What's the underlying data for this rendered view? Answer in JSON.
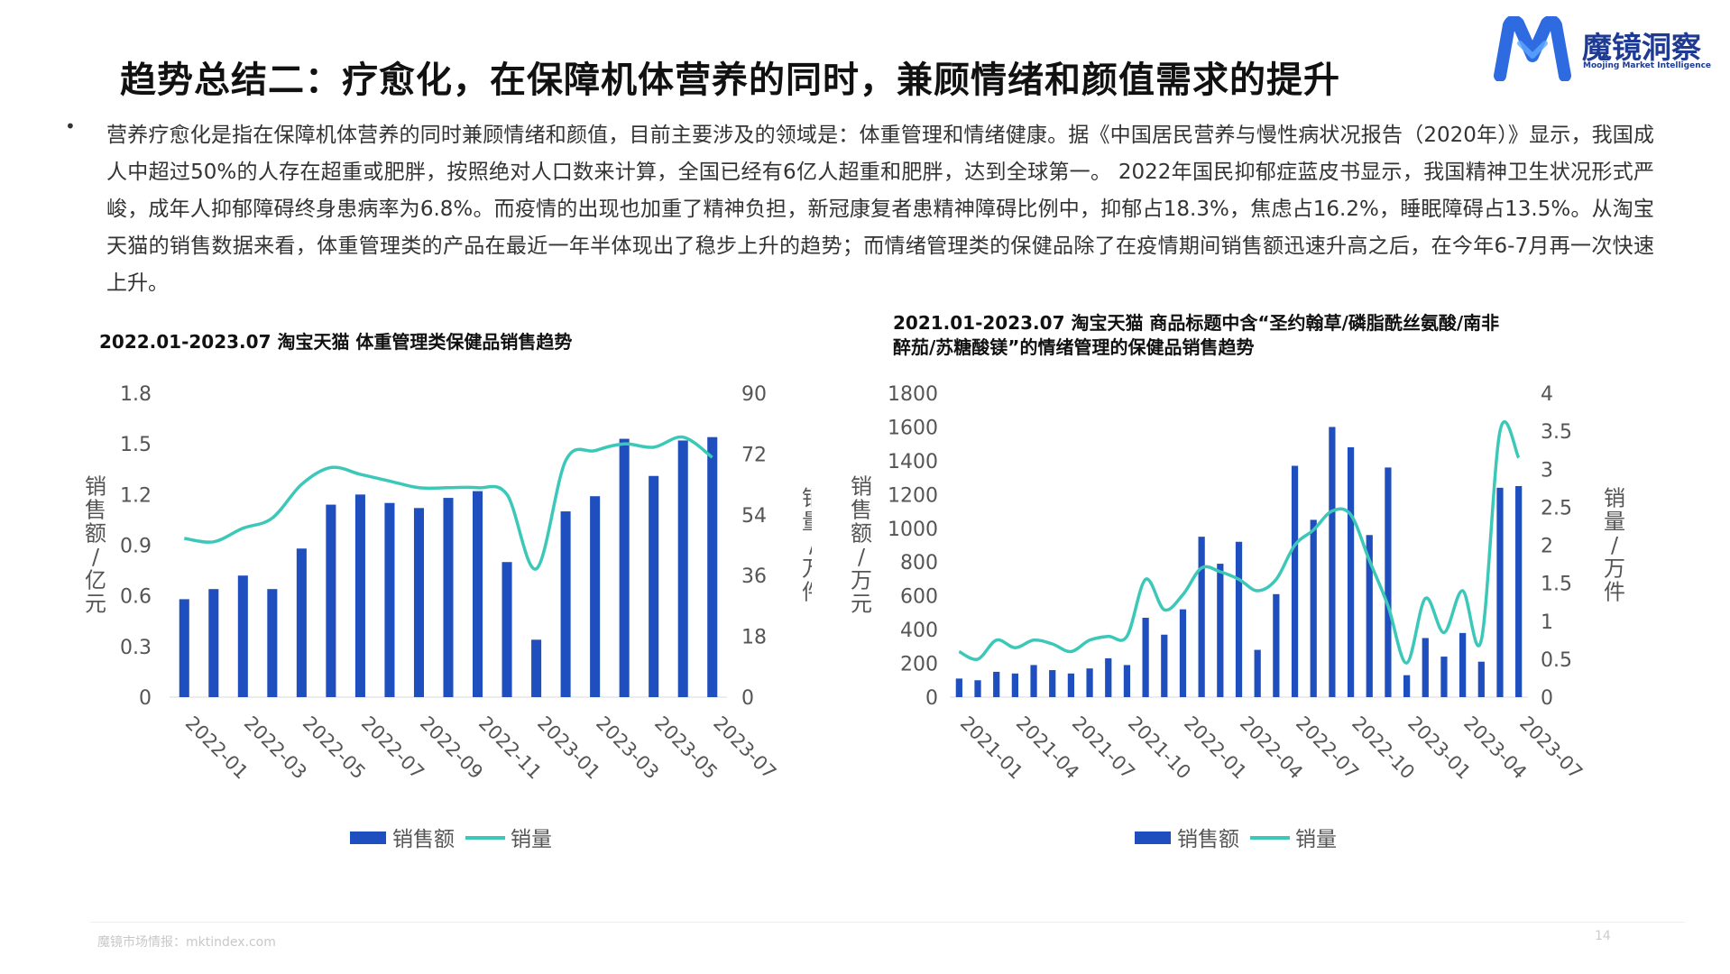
{
  "header": {
    "title": "趋势总结二：疗愈化，在保障机体营养的同时，兼顾情绪和颜值需求的提升",
    "logo_text": "魔镜洞察",
    "logo_subtext": "Moojing Market Intelligence"
  },
  "body": {
    "bullet": "•",
    "paragraph": "营养疗愈化是指在保障机体营养的同时兼顾情绪和颜值，目前主要涉及的领域是：体重管理和情绪健康。据《中国居民营养与慢性病状况报告（2020年）》显示，我国成人中超过50%的人存在超重或肥胖，按照绝对人口数来计算，全国已经有6亿人超重和肥胖，达到全球第一。 2022年国民抑郁症蓝皮书显示，我国精神卫生状况形式严峻，成年人抑郁障碍终身患病率为6.8%。而疫情的出现也加重了精神负担，新冠康复者患精神障碍比例中，抑郁占18.3%，焦虑占16.2%，睡眠障碍占13.5%。从淘宝天猫的销售数据来看，体重管理类的产品在最近一年半体现出了稳步上升的趋势；而情绪管理类的保健品除了在疫情期间销售额迅速升高之后，在今年6-7月再一次快速上升。"
  },
  "colors": {
    "bar": "#1f4fbf",
    "line": "#3cc8b8",
    "axis_text": "#555555",
    "title_text": "#111111"
  },
  "chart_data": [
    {
      "type": "bar",
      "title": "2022.01-2023.07 淘宝天猫 体重管理类保健品销售趋势",
      "ylabel": "销售额/亿元",
      "y2label": "销量/万件",
      "ylim": [
        0,
        1.8
      ],
      "y2lim": [
        0,
        90
      ],
      "yticks": [
        "0",
        "0.3",
        "0.6",
        "0.9",
        "1.2",
        "1.5",
        "1.8"
      ],
      "y2ticks": [
        "0",
        "18",
        "36",
        "54",
        "72",
        "90"
      ],
      "xtick_labels": [
        "2022-01",
        "2022-03",
        "2022-05",
        "2022-07",
        "2022-09",
        "2022-11",
        "2023-01",
        "2023-03",
        "2023-05",
        "2023-07"
      ],
      "categories": [
        "2022-01",
        "2022-02",
        "2022-03",
        "2022-04",
        "2022-05",
        "2022-06",
        "2022-07",
        "2022-08",
        "2022-09",
        "2022-10",
        "2022-11",
        "2022-12",
        "2023-01",
        "2023-02",
        "2023-03",
        "2023-04",
        "2023-05",
        "2023-06",
        "2023-07"
      ],
      "legend": [
        "销售额",
        "销量"
      ],
      "legend_position": "bottom",
      "grid": false,
      "series": [
        {
          "name": "销售额",
          "type": "bar",
          "axis": "left",
          "values": [
            0.58,
            0.64,
            0.72,
            0.64,
            0.88,
            1.14,
            1.2,
            1.15,
            1.12,
            1.18,
            1.22,
            0.8,
            0.34,
            1.1,
            1.19,
            1.53,
            1.31,
            1.52,
            1.54
          ]
        },
        {
          "name": "销量",
          "type": "line",
          "axis": "right",
          "values": [
            47,
            46,
            50,
            53,
            63,
            68,
            66,
            64,
            62,
            62,
            62,
            60,
            38,
            70,
            73,
            75,
            74,
            77,
            71
          ]
        }
      ]
    },
    {
      "type": "bar",
      "title": "2021.01-2023.07 淘宝天猫 商品标题中含“圣约翰草/磷脂酰丝氨酸/南非醉茄/苏糖酸镁”的情绪管理的保健品销售趋势",
      "ylabel": "销售额/万元",
      "y2label": "销量/万件",
      "ylim": [
        0,
        1800
      ],
      "y2lim": [
        0,
        4
      ],
      "yticks": [
        "0",
        "200",
        "400",
        "600",
        "800",
        "1000",
        "1200",
        "1400",
        "1600",
        "1800"
      ],
      "y2ticks": [
        "0",
        "0.5",
        "1",
        "1.5",
        "2",
        "2.5",
        "3",
        "3.5",
        "4"
      ],
      "xtick_labels": [
        "2021-01",
        "2021-04",
        "2021-07",
        "2021-10",
        "2022-01",
        "2022-04",
        "2022-07",
        "2022-10",
        "2023-01",
        "2023-04",
        "2023-07"
      ],
      "categories": [
        "2021-01",
        "2021-02",
        "2021-03",
        "2021-04",
        "2021-05",
        "2021-06",
        "2021-07",
        "2021-08",
        "2021-09",
        "2021-10",
        "2021-11",
        "2021-12",
        "2022-01",
        "2022-02",
        "2022-03",
        "2022-04",
        "2022-05",
        "2022-06",
        "2022-07",
        "2022-08",
        "2022-09",
        "2022-10",
        "2022-11",
        "2022-12",
        "2023-01",
        "2023-02",
        "2023-03",
        "2023-04",
        "2023-05",
        "2023-06",
        "2023-07"
      ],
      "legend": [
        "销售额",
        "销量"
      ],
      "legend_position": "bottom",
      "grid": false,
      "series": [
        {
          "name": "销售额",
          "type": "bar",
          "axis": "left",
          "values": [
            110,
            100,
            150,
            140,
            190,
            160,
            140,
            170,
            230,
            190,
            470,
            370,
            520,
            950,
            790,
            920,
            280,
            610,
            1370,
            1050,
            1600,
            1480,
            960,
            1360,
            130,
            350,
            240,
            380,
            210,
            1240,
            1250
          ]
        },
        {
          "name": "销量",
          "type": "line",
          "axis": "right",
          "values": [
            0.6,
            0.5,
            0.75,
            0.65,
            0.75,
            0.7,
            0.6,
            0.75,
            0.8,
            0.8,
            1.55,
            1.15,
            1.35,
            1.7,
            1.65,
            1.55,
            1.4,
            1.55,
            2.0,
            2.2,
            2.45,
            2.4,
            1.8,
            1.2,
            0.45,
            1.3,
            0.85,
            1.4,
            0.75,
            3.5,
            3.15
          ]
        }
      ]
    }
  ],
  "footer": {
    "source": "魔镜市场情报：mktindex.com",
    "page": "14"
  }
}
